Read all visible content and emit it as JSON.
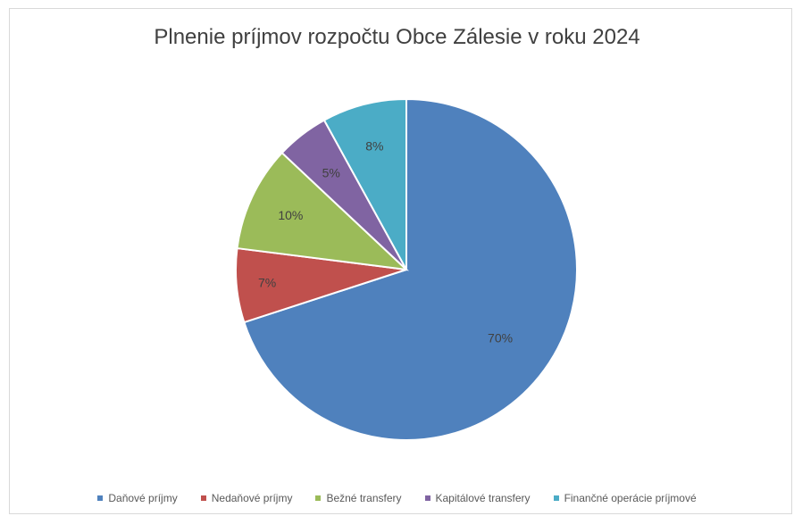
{
  "chart_data": {
    "type": "pie",
    "title": "Plnenie príjmov rozpočtu Obce Zálesie v roku 2024",
    "categories": [
      "Daňové príjmy",
      "Nedaňové príjmy",
      "Bežné transfery",
      "Kapitálové transfery",
      "Finančné operácie príjmové"
    ],
    "values": [
      70,
      7,
      10,
      5,
      8
    ],
    "labels": [
      "70%",
      "7%",
      "10%",
      "5%",
      "8%"
    ],
    "colors": [
      "#4f81bd",
      "#c0504d",
      "#9bbb59",
      "#8064a2",
      "#4bacc6"
    ],
    "legend_position": "bottom"
  }
}
